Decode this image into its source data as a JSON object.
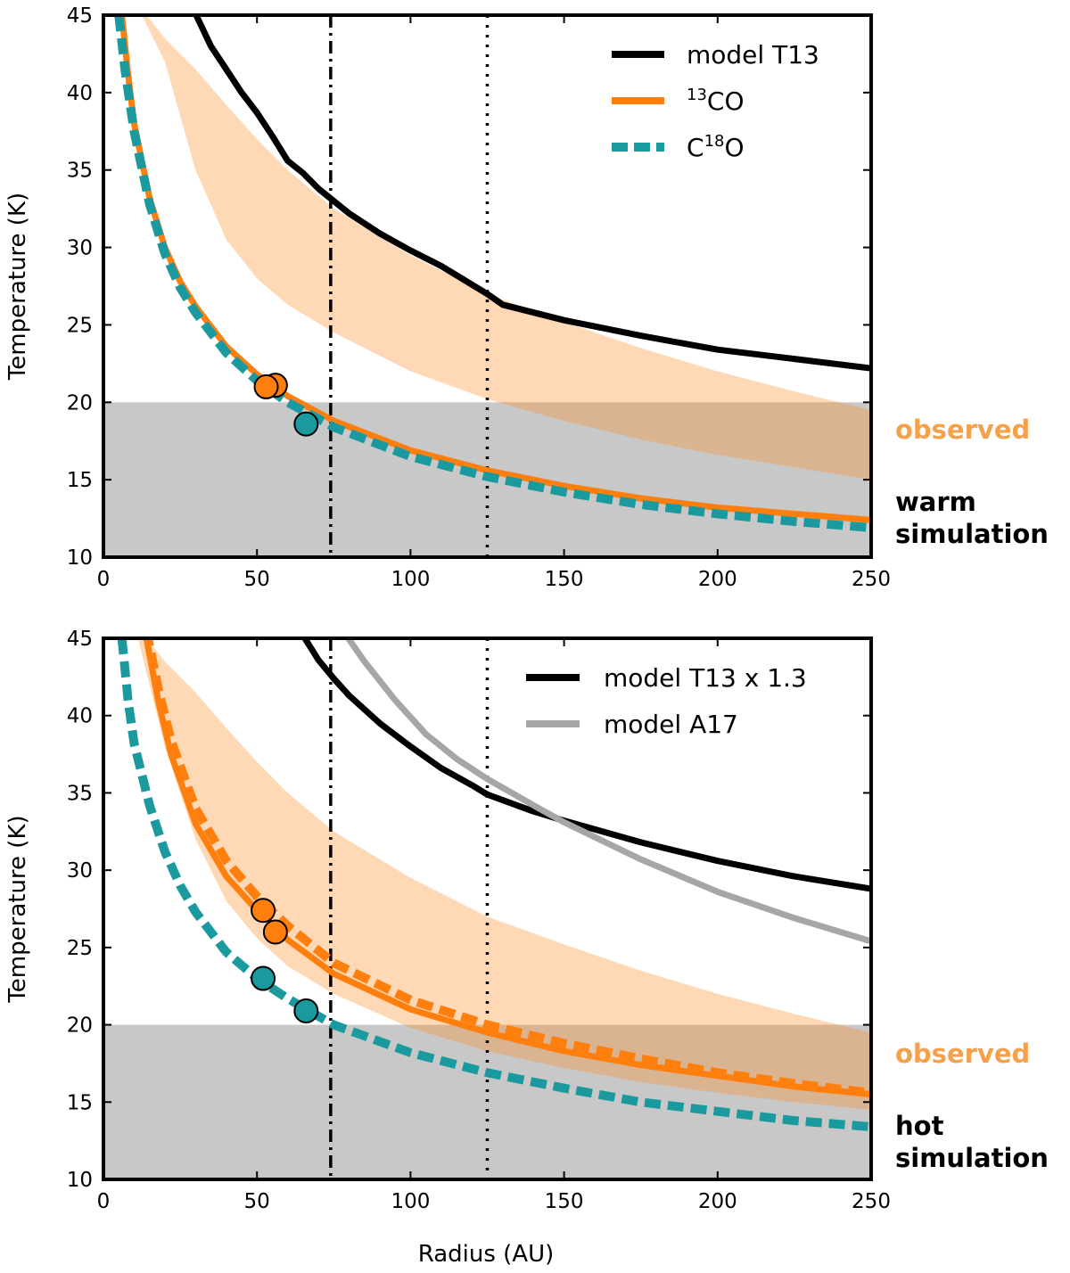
{
  "colors": {
    "model": "#000000",
    "model_a17": "#a6a6a6",
    "co13": "#ff7f0e",
    "c18o": "#1a9a9e",
    "observed_band": "#fdd0a8",
    "cold_region": "#c8c8c8",
    "observed_text": "#f5a04a"
  },
  "chart_data": [
    {
      "type": "line",
      "xlabel": "",
      "ylabel": "Temperature (K)",
      "xlim": [
        0,
        250
      ],
      "ylim": [
        10,
        45
      ],
      "xticks": [
        "0",
        "50",
        "100",
        "150",
        "200",
        "250"
      ],
      "yticks": [
        "10",
        "15",
        "20",
        "25",
        "30",
        "35",
        "40",
        "45"
      ],
      "cold_region_below": 20,
      "vlines": [
        {
          "x": 74,
          "style": "dashdot"
        },
        {
          "x": 125,
          "style": "dotted"
        }
      ],
      "legend": [
        {
          "label": "model T13",
          "color": "#000000",
          "style": "solid"
        },
        {
          "label_base": "",
          "sup": "13",
          "label_rest": "CO",
          "color": "#ff7f0e",
          "style": "solid"
        },
        {
          "label_base": "C",
          "sup": "18",
          "label_rest": "O",
          "color": "#1a9a9e",
          "style": "dashed"
        }
      ],
      "side_labels": {
        "observed": "observed",
        "simulation_1": "warm",
        "simulation_2": "simulation"
      },
      "observed_band": {
        "x": [
          10,
          20,
          30,
          40,
          50,
          60,
          75,
          100,
          125,
          150,
          175,
          200,
          225,
          250
        ],
        "upper": [
          46,
          43.5,
          41.5,
          39.2,
          37.0,
          35.0,
          32.5,
          29.5,
          27.0,
          25.2,
          23.5,
          22.0,
          20.7,
          19.5
        ],
        "lower": [
          46,
          42,
          35,
          30.5,
          28,
          26.3,
          24.5,
          22.0,
          20.2,
          18.8,
          17.6,
          16.6,
          15.8,
          15.0
        ]
      },
      "series": [
        {
          "name": "model T13",
          "color": "#000000",
          "style": "solid",
          "x": [
            29,
            35,
            40,
            45,
            50,
            55,
            60,
            65,
            70,
            75,
            80,
            90,
            100,
            110,
            125,
            130,
            150,
            175,
            200,
            225,
            250
          ],
          "y": [
            45.5,
            43.0,
            41.5,
            40.0,
            38.7,
            37.2,
            35.6,
            34.8,
            33.8,
            33.0,
            32.2,
            30.9,
            29.8,
            28.8,
            27.0,
            26.3,
            25.3,
            24.3,
            23.4,
            22.8,
            22.2
          ]
        },
        {
          "name": "13CO model",
          "color": "#ff7f0e",
          "style": "solid",
          "x": [
            6,
            8,
            10,
            15,
            20,
            25,
            30,
            40,
            50,
            55,
            60,
            75,
            100,
            125,
            150,
            175,
            200,
            225,
            250
          ],
          "y": [
            45,
            41.2,
            38.0,
            33.2,
            30.0,
            27.8,
            26.2,
            23.6,
            21.8,
            21.1,
            20.4,
            18.8,
            16.9,
            15.6,
            14.6,
            13.8,
            13.2,
            12.8,
            12.4
          ]
        },
        {
          "name": "C18O model",
          "color": "#1a9a9e",
          "style": "dashed",
          "x": [
            5,
            7,
            10,
            15,
            20,
            25,
            30,
            40,
            50,
            55,
            60,
            75,
            100,
            125,
            150,
            175,
            200,
            225,
            250
          ],
          "y": [
            45,
            41.5,
            37.5,
            32.8,
            29.6,
            27.4,
            25.8,
            23.2,
            21.4,
            20.7,
            20.0,
            18.4,
            16.5,
            15.2,
            14.2,
            13.4,
            12.8,
            12.3,
            11.9
          ]
        }
      ],
      "points": [
        {
          "x": 56,
          "y": 21.1,
          "color": "#ff7f0e"
        },
        {
          "x": 53,
          "y": 21.0,
          "color": "#ff7f0e"
        },
        {
          "x": 66,
          "y": 18.6,
          "color": "#1a9a9e"
        }
      ]
    },
    {
      "type": "line",
      "xlabel": "Radius (AU)",
      "ylabel": "Temperature (K)",
      "xlim": [
        0,
        250
      ],
      "ylim": [
        10,
        45
      ],
      "xticks": [
        "0",
        "50",
        "100",
        "150",
        "200",
        "250"
      ],
      "yticks": [
        "10",
        "15",
        "20",
        "25",
        "30",
        "35",
        "40",
        "45"
      ],
      "cold_region_below": 20,
      "vlines": [
        {
          "x": 74,
          "style": "dashdot"
        },
        {
          "x": 125,
          "style": "dotted"
        }
      ],
      "legend": [
        {
          "label": "model T13 x 1.3",
          "color": "#000000",
          "style": "solid"
        },
        {
          "label": "model A17",
          "color": "#a6a6a6",
          "style": "solid"
        }
      ],
      "side_labels": {
        "observed": "observed",
        "simulation_1": "hot",
        "simulation_2": "simulation"
      },
      "observed_band": {
        "x": [
          10,
          20,
          30,
          40,
          50,
          60,
          75,
          100,
          125,
          150,
          175,
          200,
          225,
          250
        ],
        "upper": [
          46,
          43.5,
          41.5,
          39.2,
          37.0,
          35.0,
          32.5,
          29.5,
          27.0,
          25.2,
          23.5,
          22.0,
          20.7,
          19.5
        ],
        "lower": [
          46,
          38,
          32,
          28,
          25.6,
          23.8,
          22.0,
          19.8,
          18.3,
          17.2,
          16.3,
          15.6,
          15.0,
          14.5
        ]
      },
      "series": [
        {
          "name": "model T13 x 1.3",
          "color": "#000000",
          "style": "solid",
          "x": [
            64,
            70,
            75,
            80,
            90,
            100,
            110,
            120,
            125,
            140,
            150,
            175,
            200,
            225,
            250
          ],
          "y": [
            45.5,
            43.6,
            42.4,
            41.3,
            39.5,
            38.0,
            36.6,
            35.5,
            34.9,
            33.8,
            33.2,
            31.8,
            30.6,
            29.6,
            28.8
          ]
        },
        {
          "name": "model A17",
          "color": "#a6a6a6",
          "style": "solid",
          "x": [
            78,
            85,
            95,
            105,
            115,
            125,
            140,
            150,
            175,
            200,
            225,
            250
          ],
          "y": [
            45.5,
            43.5,
            41.0,
            38.8,
            37.2,
            35.9,
            34.2,
            33.1,
            30.7,
            28.6,
            26.9,
            25.4
          ]
        },
        {
          "name": "13CO model (solid)",
          "color": "#ff7f0e",
          "style": "solid",
          "x": [
            14,
            18,
            22,
            30,
            40,
            50,
            60,
            75,
            100,
            125,
            150,
            175,
            200,
            225,
            250
          ],
          "y": [
            45,
            40.8,
            37.5,
            33.0,
            29.6,
            27.4,
            25.5,
            23.3,
            21.0,
            19.5,
            18.3,
            17.4,
            16.7,
            16.0,
            15.5
          ]
        },
        {
          "name": "13CO model (dashed)",
          "color": "#ff7f0e",
          "style": "dashed",
          "x": [
            14,
            18,
            22,
            30,
            40,
            50,
            60,
            75,
            100,
            125,
            150,
            175,
            200,
            225,
            250
          ],
          "y": [
            45.5,
            41.6,
            38.4,
            34.0,
            30.6,
            28.3,
            26.4,
            24.0,
            21.6,
            20.0,
            18.8,
            17.8,
            16.9,
            16.2,
            15.6
          ]
        },
        {
          "name": "C18O model",
          "color": "#1a9a9e",
          "style": "dashed",
          "x": [
            6,
            8,
            10,
            15,
            20,
            25,
            30,
            40,
            50,
            60,
            66,
            75,
            100,
            125,
            150,
            175,
            200,
            225,
            250
          ],
          "y": [
            45,
            41.0,
            38.2,
            34.2,
            31.2,
            29.0,
            27.3,
            24.7,
            23.0,
            21.7,
            21.0,
            20.0,
            18.2,
            16.9,
            15.9,
            15.0,
            14.4,
            13.8,
            13.4
          ]
        }
      ],
      "points": [
        {
          "x": 52,
          "y": 27.4,
          "color": "#ff7f0e"
        },
        {
          "x": 56,
          "y": 26.0,
          "color": "#ff7f0e"
        },
        {
          "x": 52,
          "y": 23.0,
          "color": "#1a9a9e"
        },
        {
          "x": 66,
          "y": 20.9,
          "color": "#1a9a9e"
        }
      ]
    }
  ]
}
